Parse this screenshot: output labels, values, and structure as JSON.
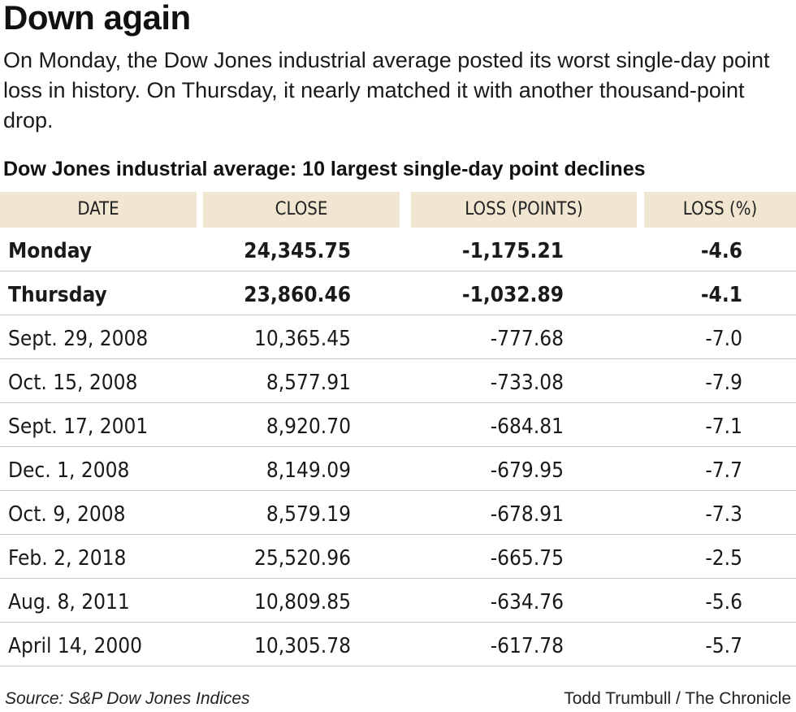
{
  "headline": "Down again",
  "dek": "On Monday, the Dow Jones industrial average posted its worst single-day point loss in history. On Thursday, it nearly matched it with another thousand-point drop.",
  "table_title": "Dow Jones industrial average: 10 largest single-day point declines",
  "colors": {
    "header_bg": "#f1e6d1",
    "row_rule": "#c9c9c9"
  },
  "chart_data": {
    "type": "table",
    "columns": [
      "DATE",
      "CLOSE",
      "LOSS (POINTS)",
      "LOSS (%)"
    ],
    "rows": [
      {
        "date": "Monday",
        "close": "24,345.75",
        "loss_points": "-1,175.21",
        "loss_pct": "-4.6",
        "bold": true
      },
      {
        "date": "Thursday",
        "close": "23,860.46",
        "loss_points": "-1,032.89",
        "loss_pct": "-4.1",
        "bold": true
      },
      {
        "date": "Sept. 29, 2008",
        "close": "10,365.45",
        "loss_points": "-777.68",
        "loss_pct": "-7.0",
        "bold": false
      },
      {
        "date": "Oct. 15, 2008",
        "close": "8,577.91",
        "loss_points": "-733.08",
        "loss_pct": "-7.9",
        "bold": false
      },
      {
        "date": "Sept. 17, 2001",
        "close": "8,920.70",
        "loss_points": "-684.81",
        "loss_pct": "-7.1",
        "bold": false
      },
      {
        "date": "Dec. 1, 2008",
        "close": "8,149.09",
        "loss_points": "-679.95",
        "loss_pct": "-7.7",
        "bold": false
      },
      {
        "date": "Oct. 9, 2008",
        "close": "8,579.19",
        "loss_points": "-678.91",
        "loss_pct": "-7.3",
        "bold": false
      },
      {
        "date": "Feb. 2, 2018",
        "close": "25,520.96",
        "loss_points": "-665.75",
        "loss_pct": "-2.5",
        "bold": false
      },
      {
        "date": "Aug. 8, 2011",
        "close": "10,809.85",
        "loss_points": "-634.76",
        "loss_pct": "-5.6",
        "bold": false
      },
      {
        "date": "April 14, 2000",
        "close": "10,305.78",
        "loss_points": "-617.78",
        "loss_pct": "-5.7",
        "bold": false
      }
    ]
  },
  "source": "Source: S&P Dow Jones Indices",
  "credit": "Todd Trumbull / The Chronicle"
}
